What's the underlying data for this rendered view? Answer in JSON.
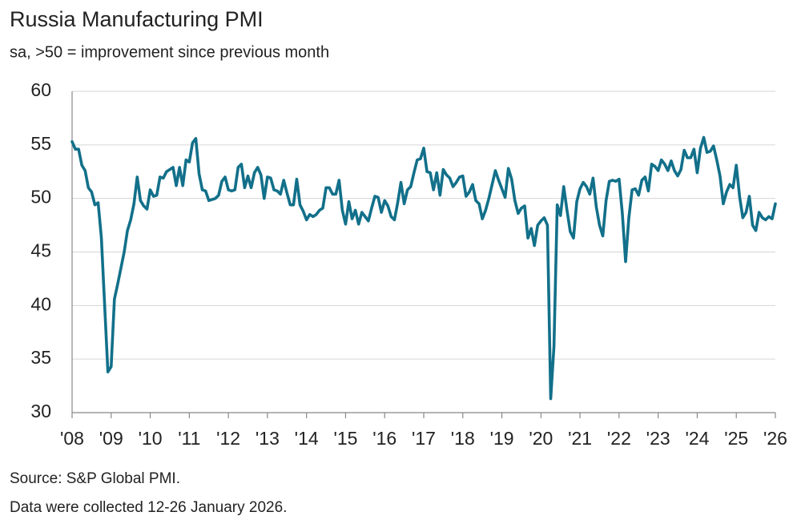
{
  "chart_data": {
    "type": "line",
    "title": "Russia Manufacturing PMI",
    "subtitle": "sa, >50 = improvement since previous month",
    "source": "Source: S&P Global PMI.",
    "note": "Data were collected 12-26 January 2026.",
    "color": "#12708a",
    "grid": true,
    "ylim": [
      30,
      60
    ],
    "yticks": [
      30,
      35,
      40,
      45,
      50,
      55,
      60
    ],
    "categories": [
      "'08",
      null,
      null,
      null,
      null,
      null,
      null,
      null,
      null,
      null,
      null,
      null,
      "'09",
      null,
      null,
      null,
      null,
      null,
      null,
      null,
      null,
      null,
      null,
      null,
      "'10",
      null,
      null,
      null,
      null,
      null,
      null,
      null,
      null,
      null,
      null,
      null,
      "'11",
      null,
      null,
      null,
      null,
      null,
      null,
      null,
      null,
      null,
      null,
      null,
      "'12",
      null,
      null,
      null,
      null,
      null,
      null,
      null,
      null,
      null,
      null,
      null,
      "'13",
      null,
      null,
      null,
      null,
      null,
      null,
      null,
      null,
      null,
      null,
      null,
      "'14",
      null,
      null,
      null,
      null,
      null,
      null,
      null,
      null,
      null,
      null,
      null,
      "'15",
      null,
      null,
      null,
      null,
      null,
      null,
      null,
      null,
      null,
      null,
      null,
      "'16",
      null,
      null,
      null,
      null,
      null,
      null,
      null,
      null,
      null,
      null,
      null,
      "'17",
      null,
      null,
      null,
      null,
      null,
      null,
      null,
      null,
      null,
      null,
      null,
      "'18",
      null,
      null,
      null,
      null,
      null,
      null,
      null,
      null,
      null,
      null,
      null,
      "'19",
      null,
      null,
      null,
      null,
      null,
      null,
      null,
      null,
      null,
      null,
      null,
      "'20",
      null,
      null,
      null,
      null,
      null,
      null,
      null,
      null,
      null,
      null,
      null,
      "'21",
      null,
      null,
      null,
      null,
      null,
      null,
      null,
      null,
      null,
      null,
      null,
      "'22",
      null,
      null,
      null,
      null,
      null,
      null,
      null,
      null,
      null,
      null,
      null,
      "'23",
      null,
      null,
      null,
      null,
      null,
      null,
      null,
      null,
      null,
      null,
      null,
      "'24",
      null,
      null,
      null,
      null,
      null,
      null,
      null,
      null,
      null,
      null,
      null,
      "'25",
      null,
      null,
      null,
      null,
      null,
      null,
      null,
      null,
      null,
      null,
      null,
      "'26"
    ],
    "values": [
      55.3,
      54.6,
      54.6,
      53.1,
      52.6,
      51.0,
      50.6,
      49.4,
      49.6,
      46.3,
      40.0,
      33.8,
      34.3,
      40.6,
      42.0,
      43.5,
      45.0,
      47.0,
      48.0,
      49.5,
      52.0,
      49.8,
      49.3,
      49.0,
      50.8,
      50.2,
      50.3,
      52.0,
      51.9,
      52.5,
      52.7,
      52.9,
      51.2,
      52.9,
      51.2,
      53.6,
      53.4,
      55.2,
      55.6,
      52.3,
      50.8,
      50.7,
      49.8,
      49.9,
      50.0,
      50.3,
      51.6,
      52.0,
      50.8,
      50.7,
      50.8,
      52.9,
      53.2,
      51.0,
      52.1,
      51.0,
      52.4,
      52.9,
      52.2,
      50.0,
      52.0,
      51.9,
      50.8,
      50.7,
      50.4,
      51.7,
      50.5,
      49.4,
      49.4,
      51.8,
      49.4,
      48.8,
      48.0,
      48.5,
      48.3,
      48.5,
      48.9,
      49.1,
      51.0,
      51.0,
      50.4,
      50.4,
      51.7,
      48.9,
      47.6,
      49.7,
      48.1,
      48.9,
      47.6,
      48.7,
      48.3,
      47.9,
      49.1,
      50.2,
      50.1,
      48.7,
      49.8,
      49.3,
      48.3,
      48.0,
      49.6,
      51.5,
      49.5,
      50.8,
      51.1,
      52.4,
      53.6,
      53.7,
      54.7,
      52.5,
      52.4,
      50.8,
      52.4,
      50.3,
      52.7,
      52.2,
      51.9,
      51.1,
      51.5,
      52.0,
      52.1,
      50.2,
      50.6,
      51.3,
      49.8,
      49.5,
      48.1,
      48.9,
      50.0,
      51.3,
      52.6,
      51.7,
      50.9,
      50.1,
      52.8,
      51.8,
      49.8,
      48.6,
      49.1,
      49.3,
      46.3,
      47.2,
      45.6,
      47.5,
      47.9,
      48.2,
      47.5,
      31.3,
      36.2,
      49.4,
      48.4,
      51.1,
      48.9,
      46.9,
      46.3,
      49.7,
      50.9,
      51.5,
      51.1,
      50.4,
      51.9,
      49.2,
      47.5,
      46.5,
      49.8,
      51.6,
      51.7,
      51.6,
      51.8,
      48.6,
      44.1,
      48.2,
      50.8,
      50.9,
      50.3,
      51.7,
      52.0,
      50.7,
      53.2,
      53.0,
      52.6,
      53.6,
      53.2,
      52.6,
      53.5,
      52.6,
      52.1,
      52.7,
      54.5,
      53.8,
      53.8,
      54.6,
      52.4,
      54.7,
      55.7,
      54.3,
      54.4,
      54.9,
      53.6,
      52.1,
      49.5,
      50.6,
      51.3,
      51.0,
      53.1,
      50.2,
      48.2,
      48.7,
      50.2,
      47.5,
      47.0,
      48.7,
      48.2,
      48.0,
      48.3,
      48.1,
      49.5
    ]
  }
}
